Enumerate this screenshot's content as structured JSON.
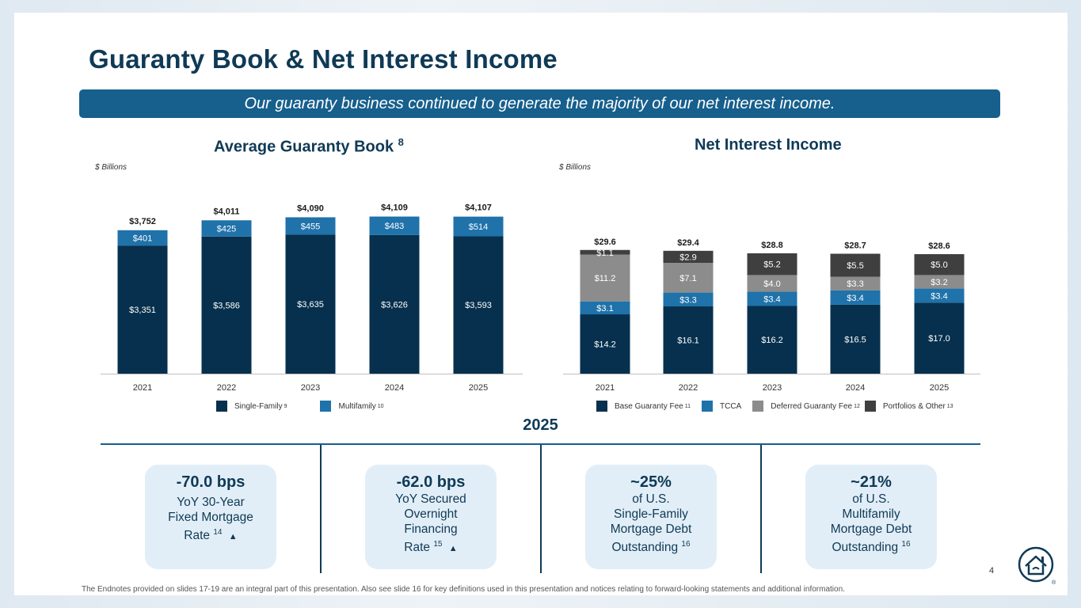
{
  "page": {
    "title": "Guaranty Book & Net Interest Income",
    "banner": "Our guaranty business continued to generate the majority of our net interest income.",
    "page_number": "4",
    "footnote": "The Endnotes provided on slides 17-19 are an integral part of this presentation. Also see slide 16 for key definitions used in this presentation and notices relating to forward-looking statements and additional information."
  },
  "colors": {
    "navy": "#06304d",
    "blue": "#1f72aa",
    "gray": "#8c8c8c",
    "charcoal": "#3f3f3f",
    "brand": "#0f3a56"
  },
  "chart_data": [
    {
      "type": "bar",
      "stacked": true,
      "title": "Average Guaranty Book",
      "title_note": "8",
      "units_label": "$ Billions",
      "categories": [
        "2021",
        "2022",
        "2023",
        "2024",
        "2025"
      ],
      "ylim": [
        0,
        4700
      ],
      "series": [
        {
          "name": "Single-Family",
          "note": "9",
          "color": "#06304d",
          "values": [
            3351,
            3586,
            3635,
            3626,
            3593
          ],
          "labels": [
            "$3,351",
            "$3,586",
            "$3,635",
            "$3,626",
            "$3,593"
          ]
        },
        {
          "name": "Multifamily",
          "note": "10",
          "color": "#1f72aa",
          "values": [
            401,
            425,
            455,
            483,
            514
          ],
          "labels": [
            "$401",
            "$425",
            "$455",
            "$483",
            "$514"
          ]
        }
      ],
      "totals": [
        3752,
        4011,
        4090,
        4109,
        4107
      ],
      "total_labels": [
        "$3,752",
        "$4,011",
        "$4,090",
        "$4,109",
        "$4,107"
      ]
    },
    {
      "type": "bar",
      "stacked": true,
      "title": "Net Interest Income",
      "units_label": "$ Billions",
      "categories": [
        "2021",
        "2022",
        "2023",
        "2024",
        "2025"
      ],
      "ylim": [
        0,
        34.1
      ],
      "series": [
        {
          "name": "Base Guaranty Fee",
          "note": "11",
          "color": "#06304d",
          "values": [
            14.2,
            16.1,
            16.2,
            16.5,
            17.0
          ],
          "labels": [
            "$14.2",
            "$16.1",
            "$16.2",
            "$16.5",
            "$17.0"
          ]
        },
        {
          "name": "TCCA",
          "note": "",
          "color": "#1f72aa",
          "values": [
            3.1,
            3.3,
            3.4,
            3.4,
            3.4
          ],
          "labels": [
            "$3.1",
            "$3.3",
            "$3.4",
            "$3.4",
            "$3.4"
          ]
        },
        {
          "name": "Deferred Guaranty Fee",
          "note": "12",
          "color": "#8c8c8c",
          "values": [
            11.2,
            7.1,
            4.0,
            3.3,
            3.2
          ],
          "labels": [
            "$11.2",
            "$7.1",
            "$4.0",
            "$3.3",
            "$3.2"
          ]
        },
        {
          "name": "Portfolios & Other",
          "note": "13",
          "color": "#3f3f3f",
          "values": [
            1.1,
            2.9,
            5.2,
            5.5,
            5.0
          ],
          "labels": [
            "$1.1",
            "$2.9",
            "$5.2",
            "$5.5",
            "$5.0"
          ]
        }
      ],
      "totals": [
        29.6,
        29.4,
        28.8,
        28.7,
        28.6
      ],
      "total_labels": [
        "$29.6",
        "$29.4",
        "$28.8",
        "$28.7",
        "$28.6"
      ]
    }
  ],
  "stats": {
    "heading": "2025",
    "cards": [
      {
        "value": "-70.0 bps",
        "line1": "YoY 30-Year",
        "line2": "Fixed Mortgage",
        "line3": "Rate",
        "line4": "",
        "note": "14",
        "arrow": "▲"
      },
      {
        "value": "-62.0 bps",
        "line1": "YoY Secured",
        "line2": "Overnight",
        "line3": "Financing",
        "line4": "Rate",
        "note": "15",
        "arrow": "▲"
      },
      {
        "value": "~25%",
        "line1": "of U.S.",
        "line2": "Single-Family",
        "line3": "Mortgage Debt",
        "line4": "Outstanding",
        "note": "16",
        "arrow": ""
      },
      {
        "value": "~21%",
        "line1": "of U.S.",
        "line2": "Multifamily",
        "line3": "Mortgage Debt",
        "line4": "Outstanding",
        "note": "16",
        "arrow": ""
      }
    ]
  },
  "logo": {
    "icon": "house-logo-icon",
    "mark": "®"
  }
}
